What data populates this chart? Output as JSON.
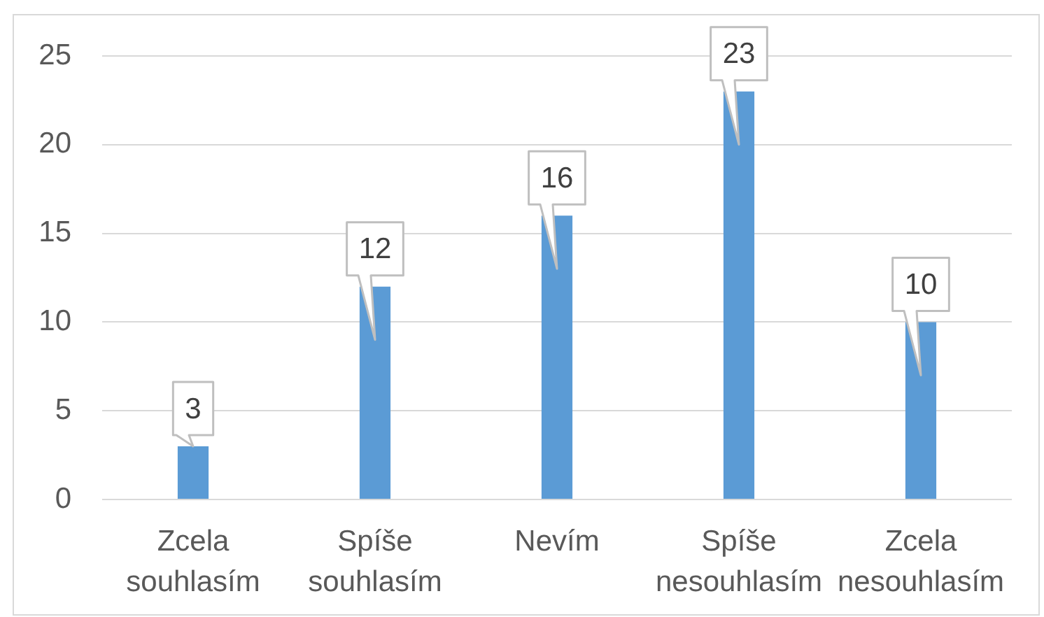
{
  "chart_data": {
    "type": "bar",
    "categories": [
      "Zcela souhlasím",
      "Spíše souhlasím",
      "Nevím",
      "Spíše nesouhlasím",
      "Zcela nesouhlasím"
    ],
    "values": [
      3,
      12,
      16,
      23,
      10
    ],
    "color": "#5b9bd5",
    "ylim": [
      0,
      25
    ],
    "yticks": [
      0,
      5,
      10,
      15,
      20,
      25
    ],
    "grid": "y",
    "data_labels": true
  }
}
